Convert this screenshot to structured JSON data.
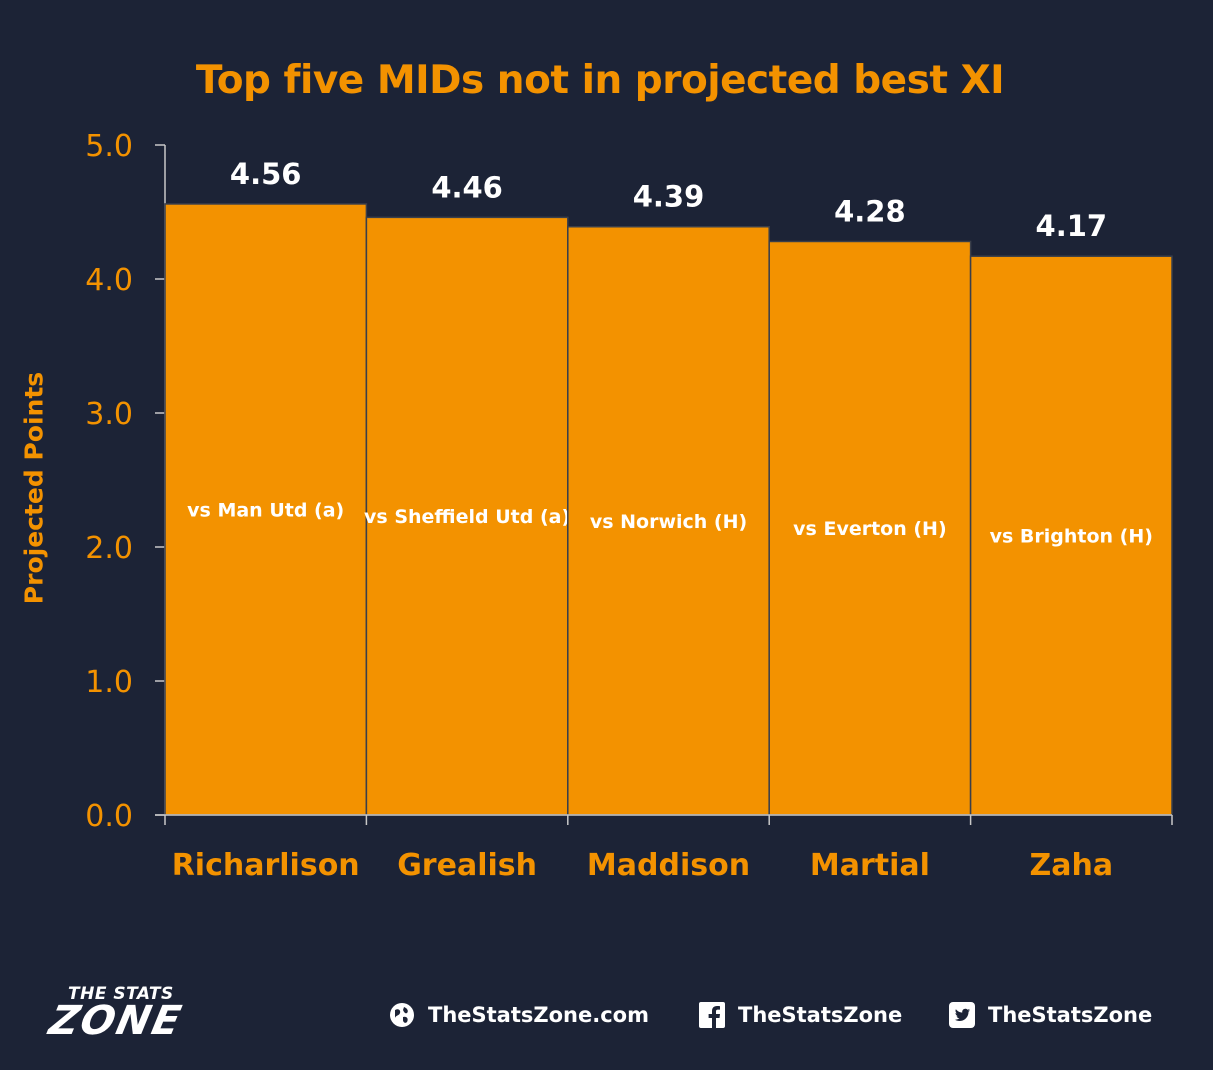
{
  "chart_data": {
    "type": "bar",
    "title": "Top five MIDs not in projected best XI",
    "ylabel": "Projected Points",
    "xlabel": "",
    "categories": [
      "Richarlison",
      "Grealish",
      "Maddison",
      "Martial",
      "Zaha"
    ],
    "values": [
      4.56,
      4.46,
      4.39,
      4.28,
      4.17
    ],
    "value_labels": [
      "4.56",
      "4.46",
      "4.39",
      "4.28",
      "4.17"
    ],
    "bar_annotations": [
      "vs Man Utd (a)",
      "vs Sheffield Utd (a)",
      "vs Norwich (H)",
      "vs Everton (H)",
      "vs Brighton (H)"
    ],
    "ylim": [
      0,
      5
    ],
    "yticks": [
      0,
      1,
      2,
      3,
      4,
      5
    ],
    "ytick_labels": [
      "0.0",
      "1.0",
      "2.0",
      "3.0",
      "4.0",
      "5.0"
    ],
    "grid": false,
    "legend": "none"
  },
  "colors": {
    "background": "#1c2336",
    "bar": "#f39200",
    "accent": "#f39200",
    "text_light": "#ffffff",
    "axis": "#c8c8c8"
  },
  "footer": {
    "logo_top": "THE STATS",
    "logo_bottom": "ZONE",
    "website_icon": "globe-icon",
    "website": "TheStatsZone.com",
    "facebook_icon": "facebook-icon",
    "facebook": "TheStatsZone",
    "twitter_icon": "twitter-icon",
    "twitter": "TheStatsZone"
  }
}
